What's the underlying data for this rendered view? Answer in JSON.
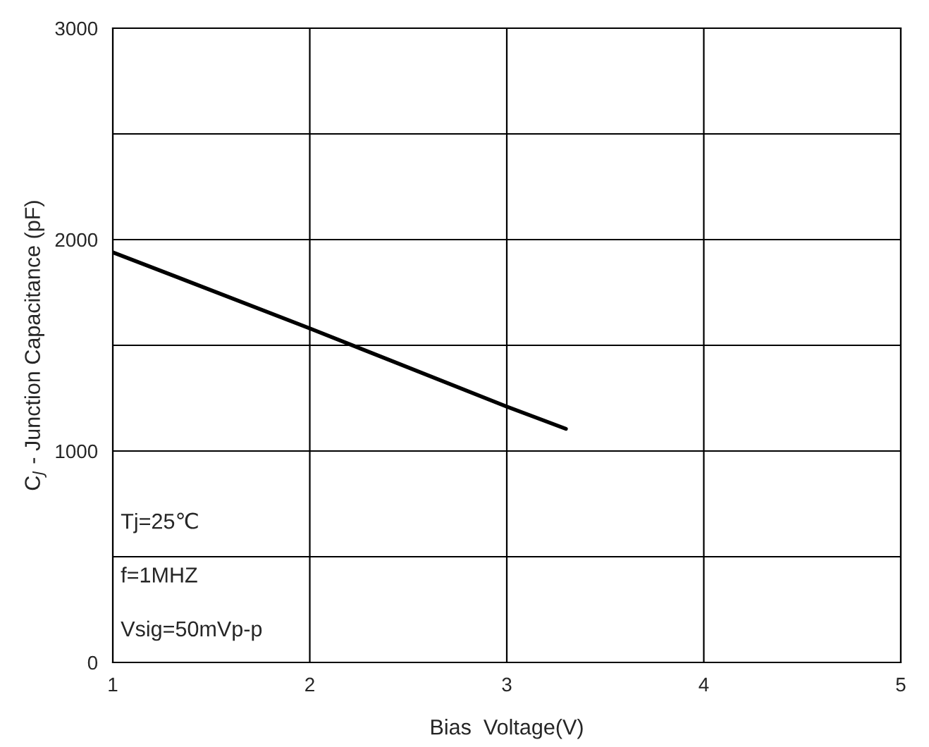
{
  "chart_data": {
    "type": "line",
    "xlabel": "Bias  Voltage(V)",
    "ylabel": "C$_{J}$ - Junction Capacitance (pF)",
    "x": [
      1,
      2,
      3,
      3.3
    ],
    "series": [
      {
        "color": "#000000",
        "values": [
          1940,
          1580,
          1210,
          1105
        ]
      }
    ],
    "xlim": [
      1,
      5
    ],
    "xticks": [
      1,
      2,
      3,
      4,
      5
    ],
    "ylim": [
      0,
      3000
    ],
    "yticks": [
      0,
      {
        "value": 500,
        "label": null
      },
      1000,
      {
        "value": 1500,
        "label": null
      },
      2000,
      {
        "value": 2500,
        "label": null
      },
      3000
    ],
    "grid": true,
    "legend": false,
    "marker": "none",
    "line_style": "solid",
    "annotations": [
      "Tj=25℃",
      "f=1MHZ",
      "Vsig=50mVp-p"
    ]
  }
}
